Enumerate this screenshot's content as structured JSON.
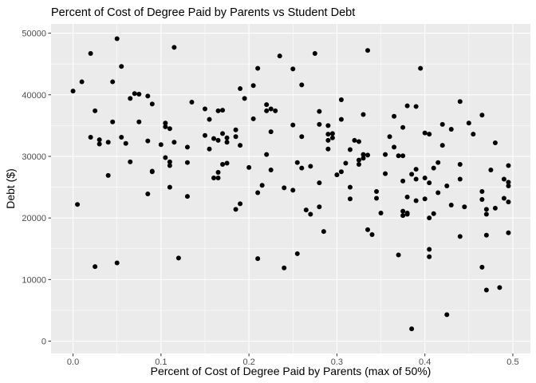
{
  "chart_data": {
    "type": "scatter",
    "title": "Percent of Cost of Degree Paid by Parents vs Student Debt",
    "xlabel": "Percent of Cost of Degree Paid by Parents (max of 50%)",
    "ylabel": "Debt ($)",
    "xlim": [
      -0.025,
      0.52
    ],
    "ylim": [
      -2000,
      51500
    ],
    "x_ticks": [
      0.0,
      0.1,
      0.2,
      0.3,
      0.4,
      0.5
    ],
    "x_tick_labels": [
      "0.0",
      "0.1",
      "0.2",
      "0.3",
      "0.4",
      "0.5"
    ],
    "y_ticks": [
      0,
      10000,
      20000,
      30000,
      40000,
      50000
    ],
    "y_tick_labels": [
      "0",
      "10000",
      "20000",
      "30000",
      "40000",
      "50000"
    ],
    "grid": true,
    "legend": "none",
    "point_color": "#000000",
    "panel_color": "#ebebeb",
    "points": [
      [
        0.0,
        40600
      ],
      [
        0.005,
        22200
      ],
      [
        0.01,
        42100
      ],
      [
        0.02,
        46700
      ],
      [
        0.02,
        33100
      ],
      [
        0.025,
        12100
      ],
      [
        0.025,
        37400
      ],
      [
        0.03,
        32700
      ],
      [
        0.03,
        32000
      ],
      [
        0.04,
        32300
      ],
      [
        0.04,
        26900
      ],
      [
        0.045,
        42100
      ],
      [
        0.045,
        35600
      ],
      [
        0.05,
        49100
      ],
      [
        0.05,
        12700
      ],
      [
        0.055,
        44600
      ],
      [
        0.055,
        33100
      ],
      [
        0.06,
        32100
      ],
      [
        0.065,
        39400
      ],
      [
        0.065,
        29100
      ],
      [
        0.07,
        40200
      ],
      [
        0.075,
        35600
      ],
      [
        0.075,
        40100
      ],
      [
        0.085,
        39800
      ],
      [
        0.085,
        32500
      ],
      [
        0.085,
        23900
      ],
      [
        0.09,
        38500
      ],
      [
        0.09,
        27600
      ],
      [
        0.09,
        27500
      ],
      [
        0.1,
        31900
      ],
      [
        0.105,
        35400
      ],
      [
        0.105,
        34800
      ],
      [
        0.105,
        29800
      ],
      [
        0.11,
        34500
      ],
      [
        0.11,
        29100
      ],
      [
        0.11,
        28500
      ],
      [
        0.11,
        25000
      ],
      [
        0.115,
        47700
      ],
      [
        0.115,
        32300
      ],
      [
        0.12,
        13500
      ],
      [
        0.13,
        31500
      ],
      [
        0.13,
        29000
      ],
      [
        0.13,
        23500
      ],
      [
        0.135,
        38800
      ],
      [
        0.15,
        33400
      ],
      [
        0.15,
        37700
      ],
      [
        0.155,
        36000
      ],
      [
        0.155,
        31200
      ],
      [
        0.16,
        32900
      ],
      [
        0.16,
        26500
      ],
      [
        0.165,
        37400
      ],
      [
        0.165,
        32600
      ],
      [
        0.165,
        27400
      ],
      [
        0.165,
        26500
      ],
      [
        0.17,
        33700
      ],
      [
        0.17,
        37500
      ],
      [
        0.17,
        28700
      ],
      [
        0.175,
        33000
      ],
      [
        0.175,
        32300
      ],
      [
        0.175,
        28900
      ],
      [
        0.185,
        34300
      ],
      [
        0.185,
        33200
      ],
      [
        0.185,
        21400
      ],
      [
        0.19,
        41000
      ],
      [
        0.19,
        31800
      ],
      [
        0.19,
        22300
      ],
      [
        0.195,
        39400
      ],
      [
        0.2,
        28200
      ],
      [
        0.205,
        41500
      ],
      [
        0.205,
        36100
      ],
      [
        0.21,
        44300
      ],
      [
        0.21,
        24100
      ],
      [
        0.21,
        13400
      ],
      [
        0.215,
        25300
      ],
      [
        0.22,
        38400
      ],
      [
        0.22,
        37400
      ],
      [
        0.22,
        30300
      ],
      [
        0.225,
        37700
      ],
      [
        0.225,
        34000
      ],
      [
        0.225,
        27800
      ],
      [
        0.23,
        37400
      ],
      [
        0.235,
        46300
      ],
      [
        0.24,
        24900
      ],
      [
        0.24,
        11900
      ],
      [
        0.25,
        44200
      ],
      [
        0.25,
        35100
      ],
      [
        0.25,
        24500
      ],
      [
        0.255,
        29000
      ],
      [
        0.255,
        14200
      ],
      [
        0.26,
        41600
      ],
      [
        0.26,
        33200
      ],
      [
        0.26,
        28100
      ],
      [
        0.265,
        21300
      ],
      [
        0.27,
        28400
      ],
      [
        0.27,
        20600
      ],
      [
        0.275,
        46700
      ],
      [
        0.28,
        37300
      ],
      [
        0.28,
        35200
      ],
      [
        0.28,
        25700
      ],
      [
        0.28,
        21800
      ],
      [
        0.285,
        17800
      ],
      [
        0.29,
        35000
      ],
      [
        0.29,
        33600
      ],
      [
        0.29,
        32600
      ],
      [
        0.29,
        31200
      ],
      [
        0.295,
        33700
      ],
      [
        0.295,
        33000
      ],
      [
        0.3,
        27000
      ],
      [
        0.305,
        39200
      ],
      [
        0.305,
        36000
      ],
      [
        0.305,
        27500
      ],
      [
        0.31,
        28900
      ],
      [
        0.315,
        31100
      ],
      [
        0.315,
        25000
      ],
      [
        0.315,
        23100
      ],
      [
        0.32,
        32600
      ],
      [
        0.325,
        32400
      ],
      [
        0.325,
        29400
      ],
      [
        0.325,
        28700
      ],
      [
        0.33,
        36800
      ],
      [
        0.33,
        30300
      ],
      [
        0.33,
        29700
      ],
      [
        0.335,
        47200
      ],
      [
        0.335,
        30200
      ],
      [
        0.335,
        18100
      ],
      [
        0.34,
        17300
      ],
      [
        0.345,
        24300
      ],
      [
        0.345,
        23200
      ],
      [
        0.35,
        20800
      ],
      [
        0.355,
        30300
      ],
      [
        0.355,
        27200
      ],
      [
        0.36,
        33200
      ],
      [
        0.365,
        36500
      ],
      [
        0.365,
        31500
      ],
      [
        0.37,
        14000
      ],
      [
        0.37,
        30100
      ],
      [
        0.375,
        34700
      ],
      [
        0.375,
        30100
      ],
      [
        0.375,
        26000
      ],
      [
        0.375,
        21100
      ],
      [
        0.375,
        20400
      ],
      [
        0.38,
        38200
      ],
      [
        0.38,
        23400
      ],
      [
        0.38,
        20800
      ],
      [
        0.38,
        20600
      ],
      [
        0.385,
        27100
      ],
      [
        0.385,
        2000
      ],
      [
        0.39,
        38100
      ],
      [
        0.39,
        27900
      ],
      [
        0.39,
        26300
      ],
      [
        0.39,
        22800
      ],
      [
        0.395,
        44300
      ],
      [
        0.4,
        33800
      ],
      [
        0.4,
        26500
      ],
      [
        0.4,
        23100
      ],
      [
        0.405,
        33600
      ],
      [
        0.405,
        14900
      ],
      [
        0.405,
        13700
      ],
      [
        0.405,
        20000
      ],
      [
        0.405,
        25700
      ],
      [
        0.41,
        28100
      ],
      [
        0.41,
        20700
      ],
      [
        0.415,
        29000
      ],
      [
        0.415,
        24100
      ],
      [
        0.42,
        35200
      ],
      [
        0.42,
        31800
      ],
      [
        0.425,
        25200
      ],
      [
        0.425,
        4300
      ],
      [
        0.43,
        34400
      ],
      [
        0.43,
        22100
      ],
      [
        0.44,
        38900
      ],
      [
        0.44,
        28700
      ],
      [
        0.44,
        26300
      ],
      [
        0.44,
        17000
      ],
      [
        0.445,
        21800
      ],
      [
        0.45,
        35400
      ],
      [
        0.455,
        33600
      ],
      [
        0.465,
        36700
      ],
      [
        0.465,
        24300
      ],
      [
        0.465,
        23000
      ],
      [
        0.465,
        12000
      ],
      [
        0.47,
        21400
      ],
      [
        0.47,
        20600
      ],
      [
        0.47,
        17200
      ],
      [
        0.47,
        8300
      ],
      [
        0.475,
        27800
      ],
      [
        0.48,
        32200
      ],
      [
        0.48,
        21600
      ],
      [
        0.485,
        8700
      ],
      [
        0.49,
        26300
      ],
      [
        0.49,
        23200
      ],
      [
        0.495,
        28500
      ],
      [
        0.495,
        25800
      ],
      [
        0.495,
        25200
      ],
      [
        0.495,
        22600
      ],
      [
        0.495,
        17600
      ]
    ]
  }
}
